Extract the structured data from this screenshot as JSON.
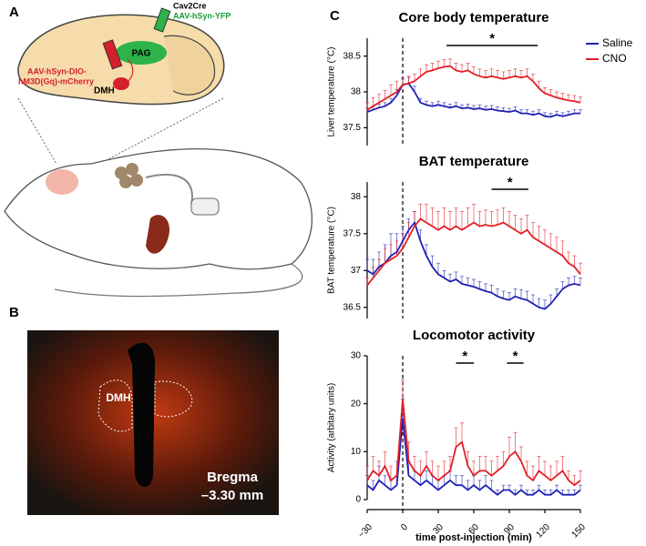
{
  "panels": {
    "a_label": "A",
    "cre": "Cav2Cre",
    "yfp": "AAV-hSyn-YFP",
    "pag": "PAG",
    "dreadd_1": "AAV-hSyn-DIO-",
    "dreadd_2": "hM3D(Gq)-mCherry",
    "dmh": "DMH",
    "b_label": "B",
    "b_dmh": "DMH",
    "bregma": "Bregma",
    "bregma_value": "–3.30 mm",
    "c_label": "C"
  },
  "chart_data": [
    {
      "type": "line",
      "title": "Core body temperature",
      "ylabel": "Liver temperature (°C)",
      "x": [
        -30,
        -25,
        -20,
        -15,
        -10,
        -5,
        0,
        5,
        10,
        15,
        20,
        25,
        30,
        35,
        40,
        45,
        50,
        55,
        60,
        65,
        70,
        75,
        80,
        85,
        90,
        95,
        100,
        105,
        110,
        115,
        120,
        125,
        130,
        135,
        140,
        145,
        150
      ],
      "xlim": [
        -30,
        150
      ],
      "ylim": [
        37.25,
        38.75
      ],
      "yticks": [
        37.5,
        38.0,
        38.5
      ],
      "vline": 0,
      "legend": "upper right",
      "significance": [
        {
          "x": [
            37,
            114
          ],
          "label": "*"
        }
      ],
      "series": [
        {
          "name": "Saline",
          "color": "#1f22b4",
          "values": [
            37.72,
            37.75,
            37.78,
            37.8,
            37.85,
            37.95,
            38.1,
            38.12,
            38.0,
            37.85,
            37.82,
            37.8,
            37.82,
            37.8,
            37.78,
            37.8,
            37.77,
            37.78,
            37.76,
            37.77,
            37.75,
            37.76,
            37.74,
            37.73,
            37.72,
            37.74,
            37.7,
            37.7,
            37.68,
            37.7,
            37.66,
            37.65,
            37.68,
            37.66,
            37.68,
            37.7,
            37.7
          ],
          "errors": [
            0.05,
            0.05,
            0.05,
            0.05,
            0.06,
            0.08,
            0.08,
            0.08,
            0.08,
            0.06,
            0.05,
            0.05,
            0.05,
            0.05,
            0.05,
            0.05,
            0.05,
            0.05,
            0.05,
            0.05,
            0.05,
            0.05,
            0.05,
            0.05,
            0.05,
            0.05,
            0.05,
            0.05,
            0.05,
            0.05,
            0.05,
            0.05,
            0.05,
            0.05,
            0.05,
            0.05,
            0.05
          ]
        },
        {
          "name": "CNO",
          "color": "#e21f26",
          "values": [
            37.75,
            37.8,
            37.85,
            37.9,
            37.95,
            38.0,
            38.1,
            38.12,
            38.15,
            38.22,
            38.28,
            38.3,
            38.33,
            38.35,
            38.36,
            38.3,
            38.28,
            38.3,
            38.25,
            38.22,
            38.2,
            38.22,
            38.2,
            38.18,
            38.2,
            38.22,
            38.2,
            38.22,
            38.15,
            38.05,
            37.98,
            37.95,
            37.92,
            37.9,
            37.88,
            37.87,
            37.85
          ],
          "errors": [
            0.1,
            0.12,
            0.12,
            0.12,
            0.15,
            0.15,
            0.1,
            0.1,
            0.1,
            0.1,
            0.1,
            0.1,
            0.1,
            0.1,
            0.1,
            0.1,
            0.1,
            0.1,
            0.1,
            0.1,
            0.1,
            0.1,
            0.1,
            0.1,
            0.1,
            0.1,
            0.1,
            0.1,
            0.1,
            0.1,
            0.08,
            0.08,
            0.08,
            0.08,
            0.08,
            0.08,
            0.08
          ]
        }
      ]
    },
    {
      "type": "line",
      "title": "BAT temperature",
      "ylabel": "BAT temperature (°C)",
      "x": [
        -30,
        -25,
        -20,
        -15,
        -10,
        -5,
        0,
        5,
        10,
        15,
        20,
        25,
        30,
        35,
        40,
        45,
        50,
        55,
        60,
        65,
        70,
        75,
        80,
        85,
        90,
        95,
        100,
        105,
        110,
        115,
        120,
        125,
        130,
        135,
        140,
        145,
        150
      ],
      "xlim": [
        -30,
        150
      ],
      "ylim": [
        36.35,
        38.2
      ],
      "yticks": [
        36.5,
        37.0,
        37.5,
        38.0
      ],
      "vline": 0,
      "significance": [
        {
          "x": [
            75,
            106
          ],
          "label": "*"
        }
      ],
      "series": [
        {
          "name": "Saline",
          "color": "#1f22b4",
          "values": [
            37.0,
            36.95,
            37.05,
            37.1,
            37.2,
            37.25,
            37.4,
            37.55,
            37.65,
            37.4,
            37.2,
            37.05,
            36.95,
            36.9,
            36.85,
            36.88,
            36.82,
            36.8,
            36.78,
            36.75,
            36.72,
            36.7,
            36.65,
            36.62,
            36.6,
            36.65,
            36.62,
            36.6,
            36.55,
            36.5,
            36.48,
            36.55,
            36.65,
            36.75,
            36.8,
            36.82,
            36.8
          ],
          "errors": [
            0.15,
            0.2,
            0.2,
            0.25,
            0.3,
            0.25,
            0.2,
            0.15,
            0.15,
            0.15,
            0.15,
            0.15,
            0.15,
            0.1,
            0.1,
            0.1,
            0.1,
            0.1,
            0.1,
            0.1,
            0.1,
            0.1,
            0.1,
            0.1,
            0.1,
            0.1,
            0.12,
            0.12,
            0.12,
            0.12,
            0.12,
            0.12,
            0.1,
            0.1,
            0.1,
            0.1,
            0.1
          ]
        },
        {
          "name": "CNO",
          "color": "#e21f26",
          "values": [
            36.8,
            36.9,
            37.0,
            37.1,
            37.15,
            37.2,
            37.3,
            37.45,
            37.6,
            37.7,
            37.65,
            37.6,
            37.55,
            37.6,
            37.55,
            37.6,
            37.55,
            37.6,
            37.65,
            37.6,
            37.62,
            37.6,
            37.62,
            37.65,
            37.6,
            37.55,
            37.5,
            37.55,
            37.45,
            37.4,
            37.35,
            37.3,
            37.25,
            37.2,
            37.1,
            37.05,
            36.95
          ],
          "errors": [
            0.1,
            0.15,
            0.15,
            0.2,
            0.2,
            0.2,
            0.2,
            0.2,
            0.2,
            0.2,
            0.25,
            0.25,
            0.25,
            0.25,
            0.25,
            0.25,
            0.25,
            0.25,
            0.25,
            0.2,
            0.2,
            0.2,
            0.2,
            0.2,
            0.2,
            0.2,
            0.2,
            0.2,
            0.2,
            0.2,
            0.2,
            0.2,
            0.2,
            0.2,
            0.15,
            0.15,
            0.15
          ]
        }
      ]
    },
    {
      "type": "line",
      "title": "Locomotor activity",
      "ylabel": "Activity (arbitary units)",
      "xlabel": "time post-injection (min)",
      "x": [
        -30,
        -25,
        -20,
        -15,
        -10,
        -5,
        0,
        5,
        10,
        15,
        20,
        25,
        30,
        35,
        40,
        45,
        50,
        55,
        60,
        65,
        70,
        75,
        80,
        85,
        90,
        95,
        100,
        105,
        110,
        115,
        120,
        125,
        130,
        135,
        140,
        145,
        150
      ],
      "xlim": [
        -30,
        150
      ],
      "xticks": [
        {
          "value": -30,
          "label": "−30"
        },
        0,
        30,
        60,
        90,
        120,
        150
      ],
      "ylim": [
        0,
        30
      ],
      "yticks": [
        0,
        10,
        20,
        30
      ],
      "vline": 0,
      "significance": [
        {
          "x": [
            45,
            60
          ],
          "label": "*"
        },
        {
          "x": [
            88,
            102
          ],
          "label": "*"
        }
      ],
      "series": [
        {
          "name": "Saline",
          "color": "#1f22b4",
          "values": [
            3,
            2,
            4,
            3,
            2,
            3,
            17,
            5,
            4,
            3,
            4,
            3,
            2,
            3,
            4,
            3,
            3,
            2,
            3,
            2,
            3,
            2,
            1,
            2,
            2,
            1,
            2,
            1,
            1,
            2,
            1,
            1,
            2,
            1,
            1,
            1,
            2
          ],
          "errors": [
            2,
            2,
            3,
            2,
            2,
            2,
            4,
            3,
            2,
            2,
            2,
            2,
            2,
            2,
            2,
            2,
            2,
            2,
            2,
            2,
            2,
            2,
            1,
            1,
            1,
            1,
            1,
            1,
            1,
            1,
            1,
            1,
            1,
            1,
            1,
            1,
            1
          ]
        },
        {
          "name": "CNO",
          "color": "#e21f26",
          "values": [
            4,
            6,
            5,
            7,
            4,
            5,
            21,
            8,
            6,
            5,
            7,
            5,
            4,
            5,
            6,
            11,
            12,
            7,
            5,
            6,
            6,
            5,
            6,
            7,
            9,
            10,
            8,
            5,
            4,
            6,
            5,
            4,
            5,
            6,
            4,
            3,
            4
          ],
          "errors": [
            3,
            3,
            3,
            3,
            3,
            3,
            4,
            4,
            3,
            3,
            3,
            3,
            3,
            3,
            3,
            4,
            4,
            3,
            3,
            3,
            3,
            3,
            3,
            3,
            4,
            4,
            3,
            3,
            3,
            3,
            3,
            3,
            3,
            3,
            2,
            2,
            2
          ]
        }
      ]
    }
  ]
}
